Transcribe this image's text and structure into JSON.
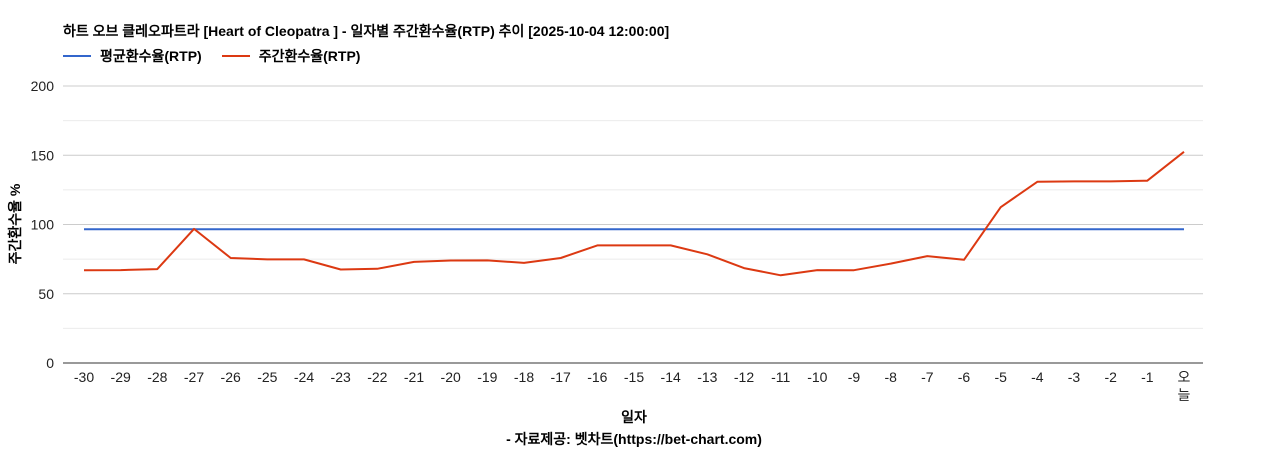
{
  "chart_data": {
    "type": "line",
    "title": "하트 오브 클레오파트라 [Heart of Cleopatra ] - 일자별 주간환수율(RTP) 추이 [2025-10-04 12:00:00]",
    "xlabel": "일자",
    "ylabel": "주간환수율 %",
    "source": "- 자료제공: 벳차트(https://bet-chart.com)",
    "ylim": [
      0,
      200
    ],
    "yticks": [
      "0",
      "50",
      "100",
      "150",
      "200"
    ],
    "grid": true,
    "legend_position": "top-left",
    "categories": [
      "-30",
      "-29",
      "-28",
      "-27",
      "-26",
      "-25",
      "-24",
      "-23",
      "-22",
      "-21",
      "-20",
      "-19",
      "-18",
      "-17",
      "-16",
      "-15",
      "-14",
      "-13",
      "-12",
      "-11",
      "-10",
      "-9",
      "-8",
      "-7",
      "-6",
      "-5",
      "-4",
      "-3",
      "-2",
      "-1",
      "오늘"
    ],
    "series": [
      {
        "name": "평균환수율(RTP)",
        "color": "#3366cc",
        "values": [
          96.5,
          96.5,
          96.5,
          96.5,
          96.5,
          96.5,
          96.5,
          96.5,
          96.5,
          96.5,
          96.5,
          96.5,
          96.5,
          96.5,
          96.5,
          96.5,
          96.5,
          96.5,
          96.5,
          96.5,
          96.5,
          96.5,
          96.5,
          96.5,
          96.5,
          96.5,
          96.5,
          96.5,
          96.5,
          96.5,
          96.5
        ]
      },
      {
        "name": "주간환수율(RTP)",
        "color": "#dc3912",
        "values": [
          67,
          67.1,
          67.8,
          96.8,
          75.8,
          74.8,
          74.8,
          67.5,
          68,
          73,
          74,
          74.1,
          72.3,
          75.8,
          84.9,
          84.9,
          84.9,
          78.5,
          68.5,
          63.3,
          67.1,
          67,
          71.8,
          77.2,
          74.5,
          112.5,
          130.8,
          131.1,
          131.1,
          131.6,
          152.5
        ]
      }
    ]
  }
}
